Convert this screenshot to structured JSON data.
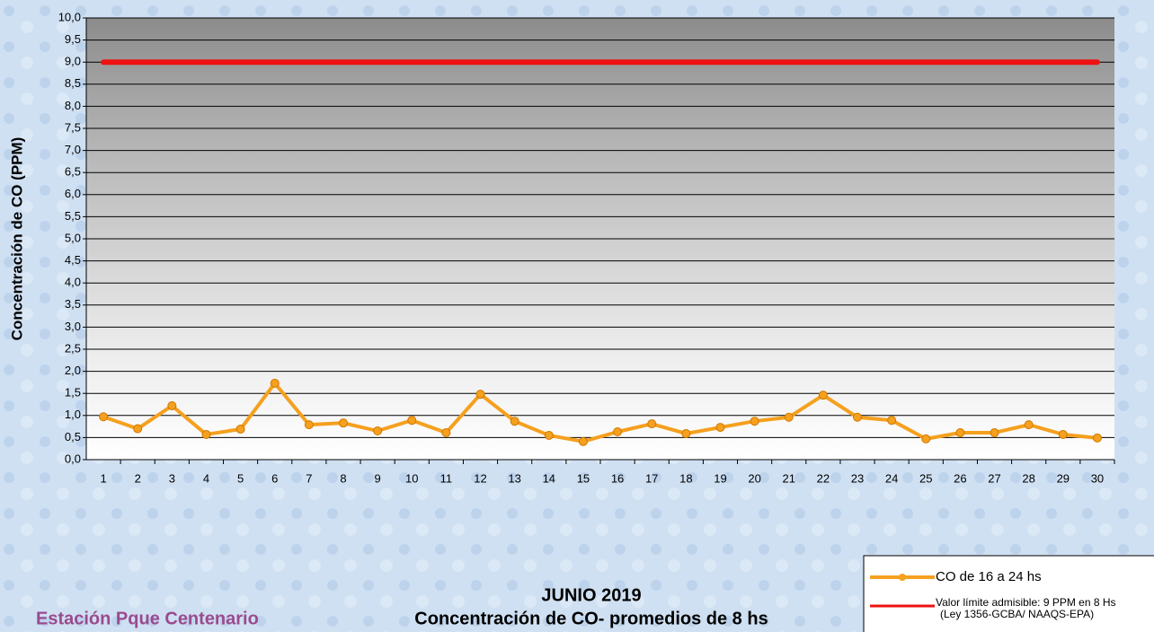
{
  "chart_data": {
    "type": "line",
    "title": "JUNIO 2019",
    "subtitle": "Concentración de CO- promedios de 8 hs",
    "station": "Estación Pque Centenario",
    "y_label": "Concentración de CO (PPM)",
    "categories": [
      "1",
      "2",
      "3",
      "4",
      "5",
      "6",
      "7",
      "8",
      "9",
      "10",
      "11",
      "12",
      "13",
      "14",
      "15",
      "16",
      "17",
      "18",
      "19",
      "20",
      "21",
      "22",
      "23",
      "24",
      "25",
      "26",
      "27",
      "28",
      "29",
      "30"
    ],
    "series": [
      {
        "name": "CO de 16 a 24 hs",
        "color": "#f5a01e",
        "markers": true,
        "values": [
          0.97,
          0.7,
          1.22,
          0.57,
          0.69,
          1.73,
          0.79,
          0.83,
          0.65,
          0.89,
          0.61,
          1.48,
          0.87,
          0.55,
          0.41,
          0.63,
          0.81,
          0.59,
          0.73,
          0.87,
          0.96,
          1.46,
          0.96,
          0.89,
          0.47,
          0.61,
          0.61,
          0.79,
          0.57,
          0.49
        ]
      },
      {
        "name": "Valor límite admisible: 9 PPM en 8 Hs",
        "legend_note": "(Ley 1356-GCBA/ NAAQS-EPA)",
        "color": "#ee1111",
        "markers": false,
        "values": [
          9,
          9,
          9,
          9,
          9,
          9,
          9,
          9,
          9,
          9,
          9,
          9,
          9,
          9,
          9,
          9,
          9,
          9,
          9,
          9,
          9,
          9,
          9,
          9,
          9,
          9,
          9,
          9,
          9,
          9
        ]
      }
    ],
    "ylim": [
      0,
      10
    ],
    "yticks": [
      {
        "value": 0,
        "label": "0,0"
      },
      {
        "value": 0.5,
        "label": "0,5"
      },
      {
        "value": 1,
        "label": "1,0"
      },
      {
        "value": 1.5,
        "label": "1,5"
      },
      {
        "value": 2,
        "label": "2,0"
      },
      {
        "value": 2.5,
        "label": "2,5"
      },
      {
        "value": 3,
        "label": "3,0"
      },
      {
        "value": 3.5,
        "label": "3,5"
      },
      {
        "value": 4,
        "label": "4,0"
      },
      {
        "value": 4.5,
        "label": "4,5"
      },
      {
        "value": 5,
        "label": "5,0"
      },
      {
        "value": 5.5,
        "label": "5,5"
      },
      {
        "value": 6,
        "label": "6,0"
      },
      {
        "value": 6.5,
        "label": "6,5"
      },
      {
        "value": 7,
        "label": "7,0"
      },
      {
        "value": 7.5,
        "label": "7,5"
      },
      {
        "value": 8,
        "label": "8,0"
      },
      {
        "value": 8.5,
        "label": "8,5"
      },
      {
        "value": 9,
        "label": "9,0"
      },
      {
        "value": 9.5,
        "label": "9,5"
      },
      {
        "value": 10,
        "label": "10,0"
      }
    ],
    "grid": true,
    "legend": "bottom-right"
  }
}
